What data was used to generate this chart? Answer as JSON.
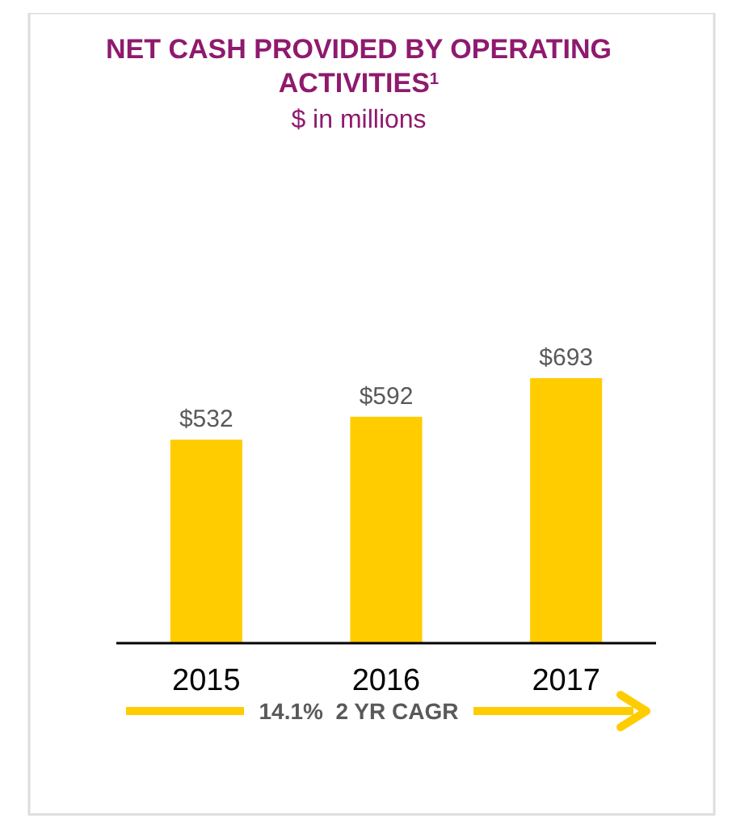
{
  "chart_data": {
    "type": "bar",
    "title": "NET CASH PROVIDED BY OPERATING ACTIVITIES$^{1}$",
    "subtitle": "$ in millions",
    "categories": [
      "2015",
      "2016",
      "2017"
    ],
    "values": [
      532,
      592,
      693
    ],
    "color": "#ffcc00",
    "value_labels": [
      "$532",
      "$592",
      "$693"
    ],
    "annotations": [
      "14.1%  2 YR CAGR"
    ]
  }
}
